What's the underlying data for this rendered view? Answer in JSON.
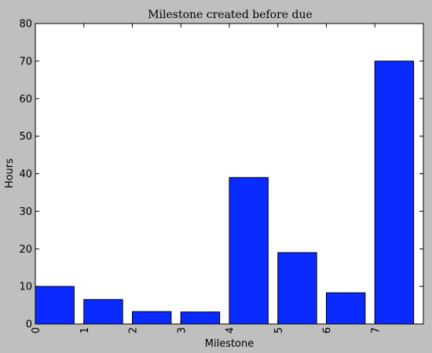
{
  "chart_data": {
    "type": "bar",
    "title": "Milestone created before due",
    "xlabel": "Milestone",
    "ylabel": "Hours",
    "categories": [
      "0",
      "1",
      "2",
      "3",
      "4",
      "5",
      "6",
      "7"
    ],
    "values": [
      10,
      6.5,
      3.3,
      3.2,
      39,
      19,
      8.3,
      70
    ],
    "ylim": [
      0,
      80
    ],
    "yticks": [
      "0",
      "10",
      "20",
      "30",
      "40",
      "50",
      "60",
      "70",
      "80"
    ],
    "xtick_rotation": "vertical",
    "grid": false,
    "legend": "none",
    "colors": {
      "bar": "#0a2bff",
      "bar_edge": "#000000",
      "plot_bg": "#ffffff",
      "figure_bg": "#bfbfbf"
    }
  }
}
